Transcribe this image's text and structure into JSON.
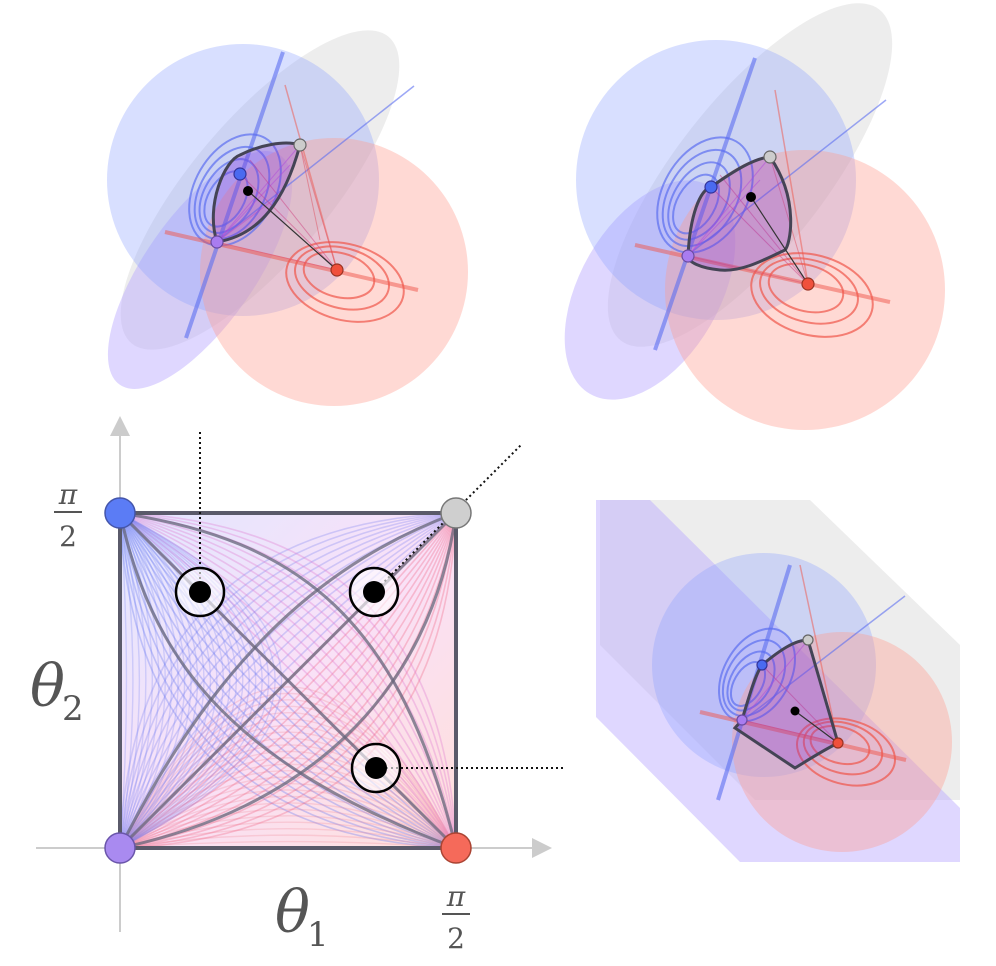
{
  "axes": {
    "x_label_main": "θ",
    "x_label_sub": "1",
    "y_label_main": "θ",
    "y_label_sub": "2",
    "x_tick_num": "π",
    "x_tick_den": "2",
    "y_tick_num": "π",
    "y_tick_den": "2"
  },
  "colors": {
    "blue": "#5b7cf5",
    "red": "#f56a5a",
    "purple": "#a98af0",
    "gray": "#cfcfcf",
    "frame": "#5a5a6a",
    "axis": "#c8c8c8"
  },
  "icons": {
    "corner_markers": [
      "blue-corner-dot",
      "gray-corner-dot",
      "purple-corner-dot",
      "red-corner-dot"
    ],
    "targets": [
      "target-upper-left",
      "target-upper-right",
      "target-lower-right"
    ]
  }
}
